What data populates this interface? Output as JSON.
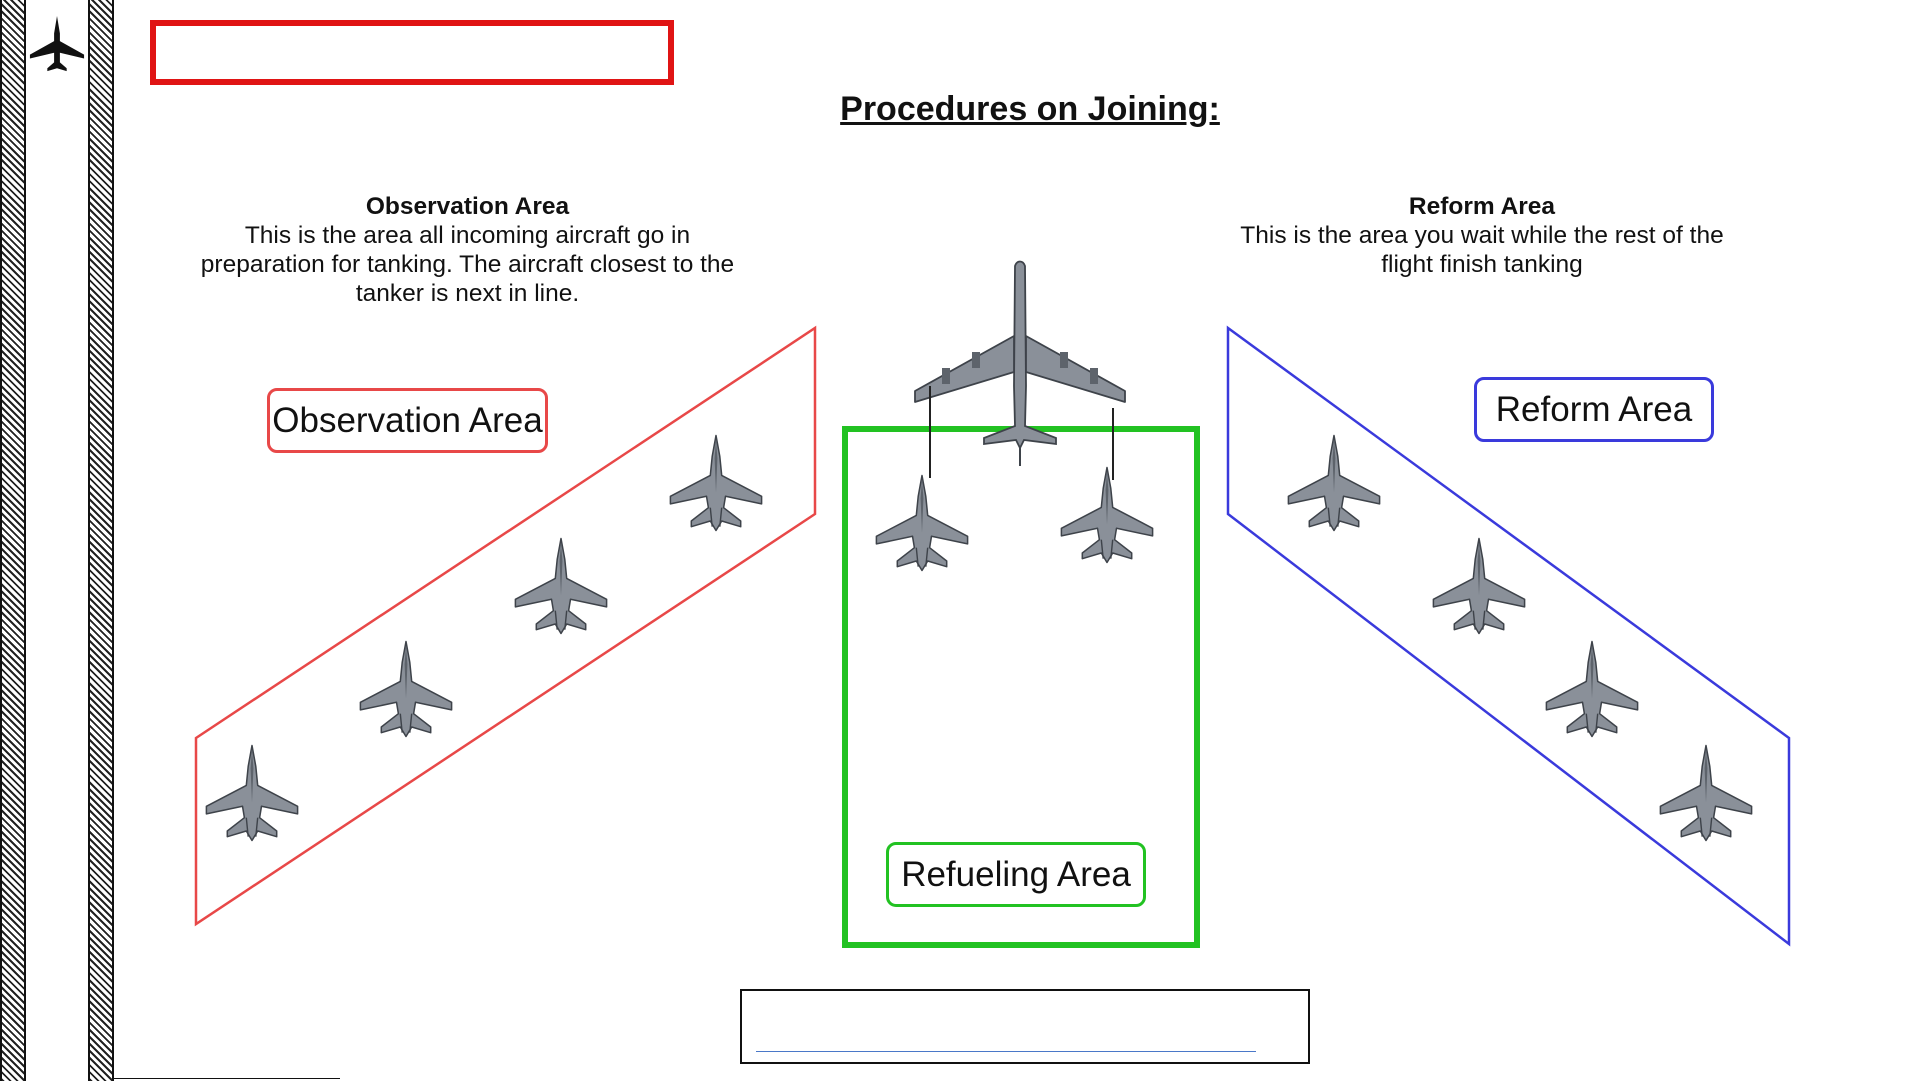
{
  "page": {
    "title": "Procedures on Joining:"
  },
  "observation": {
    "heading": "Observation Area",
    "description": "This is the area all incoming aircraft go in preparation for tanking. The aircraft closest to the tanker is next in line.",
    "label": "Observation Area",
    "color": "#e84848",
    "fighter_count": 4
  },
  "reform": {
    "heading": "Reform Area",
    "description": "This is the area you wait while the rest of the flight finish tanking",
    "label": "Reform Area",
    "color": "#3a3adc",
    "fighter_count": 4
  },
  "refueling": {
    "label": "Refueling Area",
    "color": "#22c222",
    "fighter_count": 2
  },
  "icons": {
    "logo": "fighter-jet-icon",
    "tanker": "tanker-aircraft-icon",
    "fighter": "fighter-jet-icon"
  },
  "colors": {
    "title_box": "#e01414",
    "aircraft": "#8a9099",
    "link_line": "#4a78c8"
  }
}
